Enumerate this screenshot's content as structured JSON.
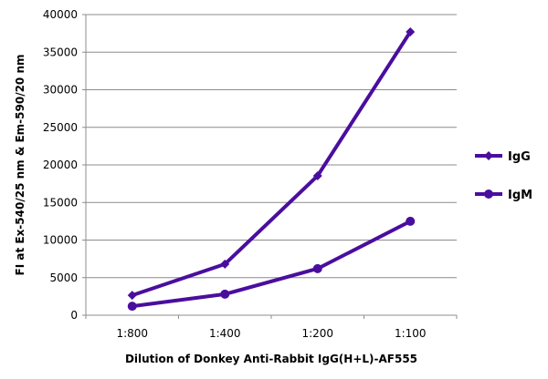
{
  "chart_data": {
    "type": "line",
    "title": "",
    "xlabel": "Dilution of Donkey Anti-Rabbit IgG(H+L)-AF555",
    "ylabel": "FI at Ex-540/25 nm & Em-590/20 nm",
    "categories": [
      "1:800",
      "1:400",
      "1:200",
      "1:100"
    ],
    "ylim": [
      0,
      40000
    ],
    "yticks": [
      0,
      5000,
      10000,
      15000,
      20000,
      25000,
      30000,
      35000,
      40000
    ],
    "grid": true,
    "legend": "right",
    "series": [
      {
        "name": "IgG",
        "marker": "diamond",
        "color": "#4a0e9e",
        "values": [
          2650,
          6800,
          18550,
          37700
        ]
      },
      {
        "name": "IgM",
        "marker": "circle",
        "color": "#4a0e9e",
        "values": [
          1200,
          2800,
          6200,
          12500
        ]
      }
    ]
  }
}
